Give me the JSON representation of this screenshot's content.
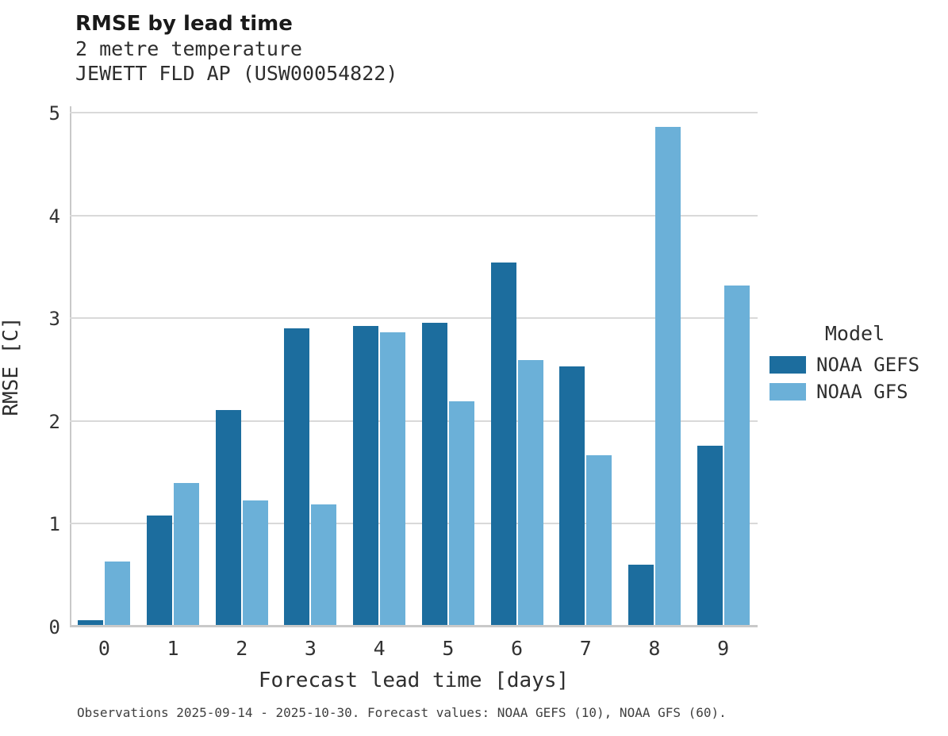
{
  "header": {
    "title": "RMSE by lead time",
    "subtitle_variable": "2 metre temperature",
    "subtitle_station": "JEWETT FLD AP (USW00054822)"
  },
  "chart_data": {
    "type": "bar",
    "title": "RMSE by lead time",
    "subtitle": "2 metre temperature — JEWETT FLD AP (USW00054822)",
    "categories": [
      "0",
      "1",
      "2",
      "3",
      "4",
      "5",
      "6",
      "7",
      "8",
      "9"
    ],
    "series": [
      {
        "name": "NOAA GEFS",
        "color": "#1c6d9e",
        "values": [
          0.05,
          1.07,
          2.1,
          2.9,
          2.92,
          2.95,
          3.54,
          2.53,
          0.59,
          1.75
        ]
      },
      {
        "name": "NOAA GFS",
        "color": "#6bb0d8",
        "values": [
          0.62,
          1.39,
          1.22,
          1.18,
          2.86,
          2.19,
          2.59,
          1.66,
          4.87,
          3.32
        ]
      }
    ],
    "xlabel": "Forecast lead time [days]",
    "ylabel": "RMSE [C]",
    "ylim": [
      0,
      5
    ],
    "yticks": [
      0,
      1,
      2,
      3,
      4,
      5
    ],
    "grid": "horizontal",
    "legend_title": "Model",
    "legend_position": "right-of-plot"
  },
  "legend": {
    "title": "Model",
    "items": [
      {
        "label": "NOAA GEFS",
        "color": "#1c6d9e"
      },
      {
        "label": "NOAA GFS",
        "color": "#6bb0d8"
      }
    ]
  },
  "footer": {
    "caption": "Observations 2025-09-14 - 2025-10-30. Forecast values: NOAA GEFS (10), NOAA GFS (60)."
  },
  "colors": {
    "background": "#ffffff",
    "gridline": "#d9d9d9",
    "spine": "#c9c9c9",
    "text": "#2e2e2e",
    "gefs_bar": "#1c6d9e",
    "gfs_bar": "#6bb0d8"
  }
}
